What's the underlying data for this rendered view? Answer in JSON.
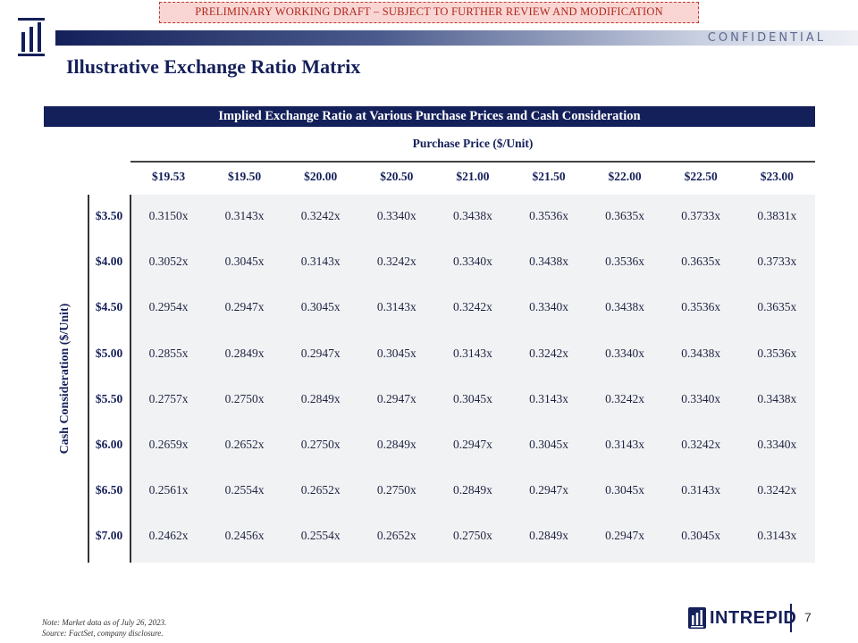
{
  "banner": "PRELIMINARY WORKING DRAFT – SUBJECT TO FURTHER REVIEW AND MODIFICATION",
  "confidential": "CONFIDENTIAL",
  "title": "Illustrative Exchange Ratio Matrix",
  "table_header": "Implied Exchange Ratio at Various Purchase Prices and Cash Consideration",
  "purchase_price_label": "Purchase Price ($/Unit)",
  "cash_axis_label": "Cash Consideration ($/Unit)",
  "prices": [
    "$19.53",
    "$19.50",
    "$20.00",
    "$20.50",
    "$21.00",
    "$21.50",
    "$22.00",
    "$22.50",
    "$23.00"
  ],
  "rows": [
    {
      "cash": "$3.50",
      "values": [
        "0.3150x",
        "0.3143x",
        "0.3242x",
        "0.3340x",
        "0.3438x",
        "0.3536x",
        "0.3635x",
        "0.3733x",
        "0.3831x"
      ]
    },
    {
      "cash": "$4.00",
      "values": [
        "0.3052x",
        "0.3045x",
        "0.3143x",
        "0.3242x",
        "0.3340x",
        "0.3438x",
        "0.3536x",
        "0.3635x",
        "0.3733x"
      ]
    },
    {
      "cash": "$4.50",
      "values": [
        "0.2954x",
        "0.2947x",
        "0.3045x",
        "0.3143x",
        "0.3242x",
        "0.3340x",
        "0.3438x",
        "0.3536x",
        "0.3635x"
      ]
    },
    {
      "cash": "$5.00",
      "values": [
        "0.2855x",
        "0.2849x",
        "0.2947x",
        "0.3045x",
        "0.3143x",
        "0.3242x",
        "0.3340x",
        "0.3438x",
        "0.3536x"
      ]
    },
    {
      "cash": "$5.50",
      "values": [
        "0.2757x",
        "0.2750x",
        "0.2849x",
        "0.2947x",
        "0.3045x",
        "0.3143x",
        "0.3242x",
        "0.3340x",
        "0.3438x"
      ]
    },
    {
      "cash": "$6.00",
      "values": [
        "0.2659x",
        "0.2652x",
        "0.2750x",
        "0.2849x",
        "0.2947x",
        "0.3045x",
        "0.3143x",
        "0.3242x",
        "0.3340x"
      ]
    },
    {
      "cash": "$6.50",
      "values": [
        "0.2561x",
        "0.2554x",
        "0.2652x",
        "0.2750x",
        "0.2849x",
        "0.2947x",
        "0.3045x",
        "0.3143x",
        "0.3242x"
      ]
    },
    {
      "cash": "$7.00",
      "values": [
        "0.2462x",
        "0.2456x",
        "0.2554x",
        "0.2652x",
        "0.2750x",
        "0.2849x",
        "0.2947x",
        "0.3045x",
        "0.3143x"
      ]
    }
  ],
  "footnote_note": "Note: Market data as of July 26, 2023.",
  "footnote_source": "Source: FactSet, company disclosure.",
  "brand_name": "INTREPID",
  "page_number": "7",
  "colors": {
    "navy": "#14205a",
    "draft_red": "#b0281f",
    "draft_fill": "#f9d6d3",
    "grid_fill": "#f1f2f4"
  }
}
